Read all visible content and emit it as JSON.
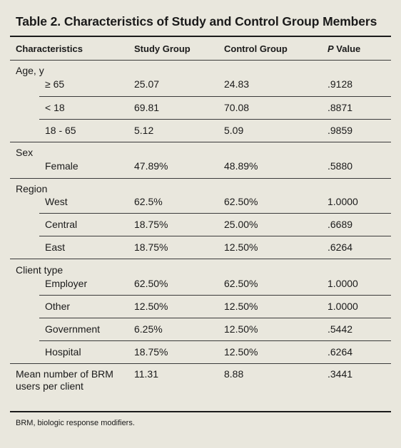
{
  "title": "Table 2. Characteristics of Study and Control Group Members",
  "headers": {
    "characteristics": "Characteristics",
    "study": "Study Group",
    "control": "Control Group",
    "p_letter": "P",
    "p_rest": " Value"
  },
  "groups": {
    "age": "Age, y",
    "sex": "Sex",
    "region": "Region",
    "client": "Client type",
    "mean": "Mean number of BRM users per client"
  },
  "rows": [
    {
      "label": "≥ 65",
      "study": "25.07",
      "control": "24.83",
      "p": ".9128"
    },
    {
      "label": "< 18",
      "study": "69.81",
      "control": "70.08",
      "p": ".8871"
    },
    {
      "label": "18 - 65",
      "study": "5.12",
      "control": "5.09",
      "p": ".9859"
    },
    {
      "label": "Female",
      "study": "47.89%",
      "control": "48.89%",
      "p": ".5880"
    },
    {
      "label": "West",
      "study": "62.5%",
      "control": "62.50%",
      "p": "1.0000"
    },
    {
      "label": "Central",
      "study": "18.75%",
      "control": "25.00%",
      "p": ".6689"
    },
    {
      "label": "East",
      "study": "18.75%",
      "control": "12.50%",
      "p": ".6264"
    },
    {
      "label": "Employer",
      "study": "62.50%",
      "control": "62.50%",
      "p": "1.0000"
    },
    {
      "label": "Other",
      "study": "12.50%",
      "control": "12.50%",
      "p": "1.0000"
    },
    {
      "label": "Government",
      "study": "6.25%",
      "control": "12.50%",
      "p": ".5442"
    },
    {
      "label": "Hospital",
      "study": "18.75%",
      "control": "12.50%",
      "p": ".6264"
    }
  ],
  "mean_row": {
    "study": "11.31",
    "control": "8.88",
    "p": ".3441"
  },
  "footnote": "BRM, biologic response modifiers."
}
